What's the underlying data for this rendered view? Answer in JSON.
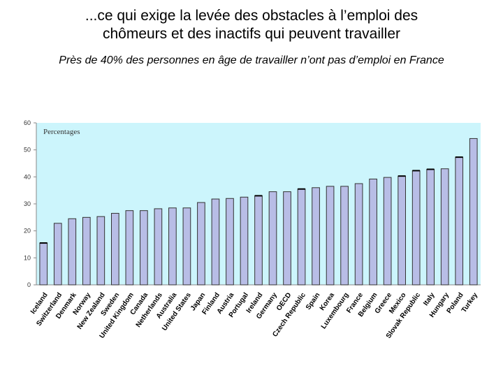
{
  "header": {
    "title_line1": "...ce qui exige la levée des obstacles à l’emploi des",
    "title_line2": "chômeurs et des inactifs qui peuvent travailler",
    "subtitle": "Près de 40% des personnes en âge de travailler n’ont pas d’emploi en France"
  },
  "chart_data": {
    "type": "bar",
    "unit_label": "Percentages",
    "ylim": [
      0,
      60
    ],
    "yticks": [
      0,
      10,
      20,
      30,
      40,
      50,
      60
    ],
    "categories": [
      "Iceland",
      "Switzerland",
      "Denmark",
      "Norway",
      "New Zealand",
      "Sweden",
      "United Kingdom",
      "Canada",
      "Netherlands",
      "Australia",
      "United States",
      "Japan",
      "Finland",
      "Austria",
      "Portugal",
      "Ireland",
      "Germany",
      "OECD",
      "Czech Republic",
      "Spain",
      "Korea",
      "Luxembourg",
      "France",
      "Belgium",
      "Greece",
      "Mexico",
      "Slovak Republic",
      "Italy",
      "Hungary",
      "Poland",
      "Turkey"
    ],
    "values": [
      15.5,
      22.8,
      24.5,
      25.0,
      25.3,
      26.5,
      27.5,
      27.5,
      28.2,
      28.5,
      28.5,
      30.5,
      31.8,
      32.0,
      32.5,
      33.0,
      34.5,
      34.5,
      35.5,
      36.0,
      36.5,
      36.5,
      37.5,
      39.2,
      39.8,
      40.3,
      42.3,
      42.8,
      43.0,
      47.3,
      54.2
    ],
    "highlight_color": "#000000",
    "bar_color": "#b8bde6",
    "plot_bg": "#ccf5fc",
    "highlighted": [
      "Iceland",
      "Ireland",
      "Czech Republic",
      "Mexico",
      "Slovak Republic",
      "Italy",
      "Poland"
    ]
  }
}
